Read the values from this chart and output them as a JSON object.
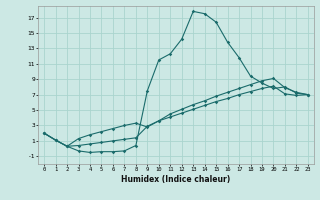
{
  "xlabel": "Humidex (Indice chaleur)",
  "background_color": "#cce8e4",
  "grid_color": "#aad4ce",
  "line_color": "#1a6b6b",
  "xlim": [
    -0.5,
    23.5
  ],
  "ylim": [
    -2,
    18.5
  ],
  "yticks": [
    -1,
    1,
    3,
    5,
    7,
    9,
    11,
    13,
    15,
    17
  ],
  "xticks": [
    0,
    1,
    2,
    3,
    4,
    5,
    6,
    7,
    8,
    9,
    10,
    11,
    12,
    13,
    14,
    15,
    16,
    17,
    18,
    19,
    20,
    21,
    22,
    23
  ],
  "line1_x": [
    0,
    1,
    2,
    3,
    4,
    5,
    6,
    7,
    8,
    9,
    10,
    11,
    12,
    13,
    14,
    15,
    16,
    17,
    18,
    19,
    20,
    21,
    22,
    23
  ],
  "line1_y": [
    2.0,
    1.1,
    0.3,
    -0.3,
    -0.5,
    -0.4,
    -0.4,
    -0.3,
    0.4,
    7.5,
    11.5,
    12.3,
    14.2,
    17.8,
    17.5,
    16.4,
    13.8,
    11.8,
    9.4,
    8.5,
    7.8,
    8.0,
    7.2,
    7.0
  ],
  "line2_x": [
    0,
    1,
    2,
    3,
    4,
    5,
    6,
    7,
    8,
    9,
    10,
    11,
    12,
    13,
    14,
    15,
    16,
    17,
    18,
    19,
    20,
    21,
    22,
    23
  ],
  "line2_y": [
    2.0,
    1.1,
    0.3,
    1.3,
    1.8,
    2.2,
    2.6,
    3.0,
    3.3,
    2.8,
    3.6,
    4.5,
    5.1,
    5.7,
    6.2,
    6.8,
    7.3,
    7.8,
    8.3,
    8.8,
    9.1,
    7.9,
    7.3,
    7.0
  ],
  "line3_x": [
    0,
    1,
    2,
    3,
    4,
    5,
    6,
    7,
    8,
    9,
    10,
    11,
    12,
    13,
    14,
    15,
    16,
    17,
    18,
    19,
    20,
    21,
    22,
    23
  ],
  "line3_y": [
    2.0,
    1.1,
    0.3,
    0.4,
    0.6,
    0.8,
    1.0,
    1.2,
    1.4,
    2.9,
    3.6,
    4.1,
    4.6,
    5.1,
    5.6,
    6.1,
    6.5,
    7.0,
    7.4,
    7.8,
    8.1,
    7.1,
    6.9,
    7.0
  ]
}
